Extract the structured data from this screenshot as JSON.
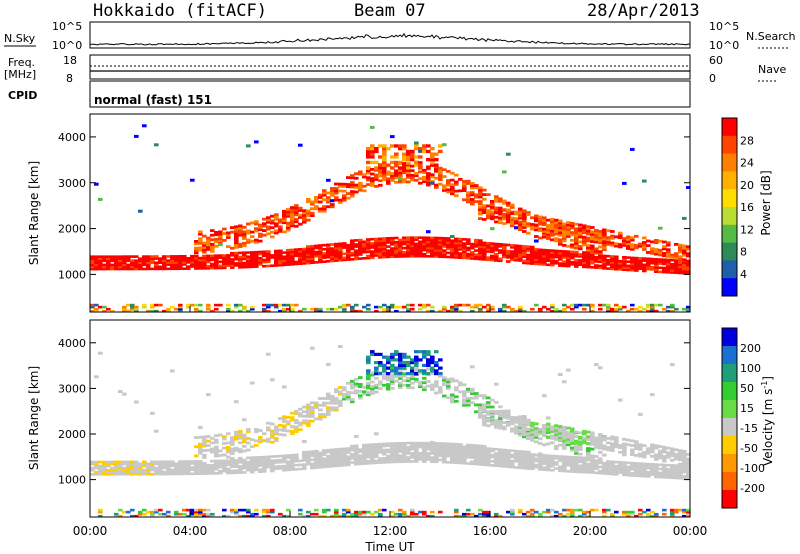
{
  "header": {
    "station": "Hokkaido (fitACF)",
    "beam": "Beam 07",
    "date": "28/Apr/2013"
  },
  "strip_labels": {
    "nsky": "N.Sky",
    "nsearch": "N.Search",
    "freq_line1": "Freq.",
    "freq_line2": "[MHz]",
    "nave": "Nave",
    "cpid": "CPID",
    "cpid_text": "normal (fast) 151"
  },
  "strip_ticks": {
    "noise_left": [
      "10^5",
      "10^0"
    ],
    "noise_right": [
      "10^5",
      "10^0"
    ],
    "freq_left": [
      "18",
      "8"
    ],
    "nave_right": [
      "60",
      "0"
    ]
  },
  "chart_data": [
    {
      "type": "heatmap",
      "panel": "power",
      "ylabel": "Slant Range [km]",
      "ylim": [
        180,
        4500
      ],
      "yticks": [
        1000,
        2000,
        3000,
        4000
      ],
      "xlim": [
        0,
        24
      ],
      "colorbar": {
        "label": "Power [dB]",
        "ticks": [
          "28",
          "24",
          "20",
          "16",
          "12",
          "8",
          "4"
        ],
        "colors": [
          "#ff0000",
          "#ff4400",
          "#ff8000",
          "#ffb000",
          "#ffdd00",
          "#bbdd33",
          "#55bb44",
          "#2e8b57",
          "#1f5faa",
          "#0000ff"
        ]
      }
    },
    {
      "type": "heatmap",
      "panel": "velocity",
      "ylabel": "Slant Range [km]",
      "ylim": [
        180,
        4500
      ],
      "yticks": [
        1000,
        2000,
        3000,
        4000
      ],
      "xlim": [
        0,
        24
      ],
      "xticks": [
        "00:00",
        "04:00",
        "08:00",
        "12:00",
        "16:00",
        "20:00",
        "00:00"
      ],
      "xlabel": "Time UT",
      "colorbar": {
        "label_main": "Velocity [m s",
        "label_sup": "-1",
        "label_end": "]",
        "ticks": [
          "200",
          "100",
          "50",
          "15",
          "-15",
          "-50",
          "-100",
          "-200"
        ],
        "colors": [
          "#0000dd",
          "#1a6fd0",
          "#1f9e7a",
          "#33cc33",
          "#66dd44",
          "#c8c8c8",
          "#ffcc00",
          "#ff9900",
          "#ff6600",
          "#ff0000"
        ]
      }
    }
  ]
}
